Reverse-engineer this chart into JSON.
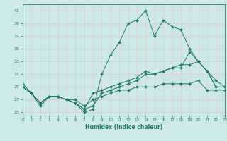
{
  "xlabel": "Humidex (Indice chaleur)",
  "xlim": [
    0,
    23
  ],
  "ylim": [
    24.5,
    42
  ],
  "yticks": [
    25,
    27,
    29,
    31,
    33,
    35,
    37,
    39,
    41
  ],
  "xticks": [
    0,
    1,
    2,
    3,
    4,
    5,
    6,
    7,
    8,
    9,
    10,
    11,
    12,
    13,
    14,
    15,
    16,
    17,
    18,
    19,
    20,
    21,
    22,
    23
  ],
  "bg_color": "#cce8e8",
  "line_color": "#1a7a6a",
  "grid_color": "#e8c8c8",
  "lines": [
    {
      "x": [
        0,
        1,
        2,
        3,
        4,
        5,
        6,
        7,
        8,
        9,
        10,
        11,
        12,
        13,
        14,
        15,
        16,
        17,
        18,
        19,
        20,
        21,
        22,
        23
      ],
      "y": [
        29.5,
        28,
        26,
        27.5,
        27.5,
        27,
        26.5,
        25,
        25.5,
        31,
        34,
        36,
        39,
        39.5,
        41,
        37,
        39.5,
        38.5,
        38,
        35,
        33,
        31.5,
        29,
        29
      ]
    },
    {
      "x": [
        0,
        1,
        2,
        3,
        4,
        5,
        6,
        7,
        8,
        9,
        10,
        11,
        12,
        13,
        14,
        15,
        16,
        17,
        18,
        19,
        20,
        21,
        22,
        23
      ],
      "y": [
        29,
        28,
        26.5,
        27.5,
        27.5,
        27,
        26.5,
        25.5,
        28,
        28.5,
        29,
        29.5,
        30,
        30.5,
        31.5,
        31,
        31.5,
        32,
        32,
        34.5,
        33,
        31.5,
        29,
        29
      ]
    },
    {
      "x": [
        0,
        1,
        2,
        3,
        4,
        5,
        6,
        7,
        8,
        9,
        10,
        11,
        12,
        13,
        14,
        15,
        16,
        17,
        18,
        19,
        20,
        21,
        22,
        23
      ],
      "y": [
        29,
        28,
        26.5,
        27.5,
        27.5,
        27,
        27,
        26,
        27,
        27.5,
        28,
        28.5,
        28.5,
        29,
        29,
        29,
        29.5,
        29.5,
        29.5,
        29.5,
        30,
        28.5,
        28.5,
        28.5
      ]
    },
    {
      "x": [
        0,
        1,
        2,
        3,
        4,
        5,
        6,
        7,
        8,
        9,
        10,
        11,
        12,
        13,
        14,
        15,
        16,
        17,
        18,
        19,
        20,
        21,
        22,
        23
      ],
      "y": [
        29,
        28,
        26.5,
        27.5,
        27.5,
        27,
        26.5,
        25.5,
        26,
        28,
        28.5,
        29,
        29.5,
        30,
        31,
        31,
        31.5,
        32,
        32.5,
        32.5,
        33,
        31.5,
        30,
        29
      ]
    }
  ]
}
